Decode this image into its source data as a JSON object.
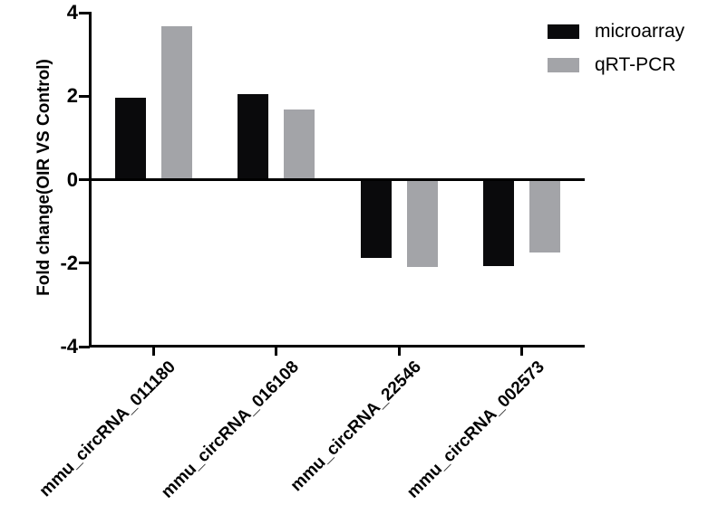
{
  "chart_data": {
    "type": "bar",
    "title": "",
    "xlabel": "",
    "ylabel": "Fold change(OIR VS Control)",
    "ylim": [
      -4,
      4
    ],
    "yticks": [
      4,
      2,
      0,
      -2,
      -4
    ],
    "grid": false,
    "legend_position": "top-right",
    "categories": [
      "mmu_circRNA_011180",
      "mmu_circRNA_016108",
      "mmu_circRNA_22546",
      "mmu_circRNA_002573"
    ],
    "series": [
      {
        "name": "microarray",
        "color": "#0a0a0c",
        "values": [
          1.97,
          2.05,
          -1.88,
          -2.08
        ]
      },
      {
        "name": "qRT-PCR",
        "color": "#a3a4a8",
        "values": [
          3.68,
          1.68,
          -2.1,
          -1.74
        ]
      }
    ]
  },
  "colors": {
    "axis": "#000000",
    "background": "#ffffff"
  }
}
